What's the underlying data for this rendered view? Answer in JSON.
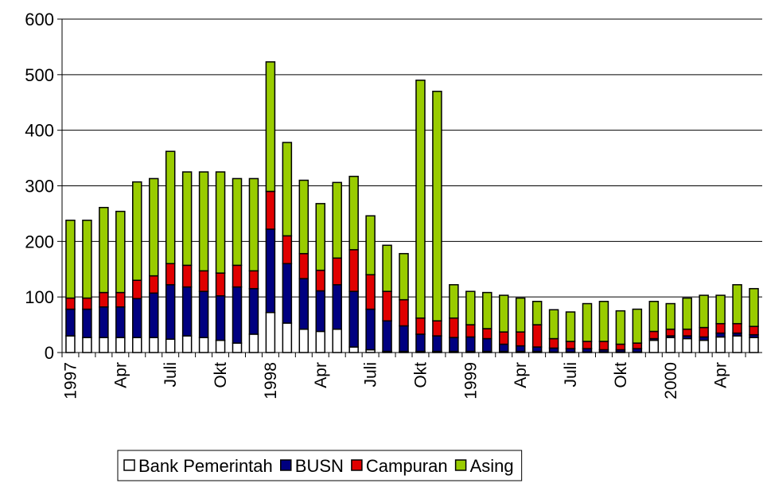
{
  "chart_data": {
    "type": "stacked-bar",
    "categories": [
      "1997",
      null,
      null,
      "Apr",
      null,
      null,
      "Juli",
      null,
      null,
      "Okt",
      null,
      null,
      "1998",
      null,
      null,
      "Apr",
      null,
      null,
      "Juli",
      null,
      null,
      "Okt",
      null,
      null,
      "1999",
      null,
      null,
      "Apr",
      null,
      null,
      "Juli",
      null,
      null,
      "Okt",
      null,
      null,
      "2000",
      null,
      null,
      "Apr",
      null,
      null
    ],
    "series": [
      {
        "name": "Bank Pemerintah",
        "color": "#ffffff",
        "values": [
          30,
          27,
          27,
          27,
          27,
          27,
          24,
          30,
          27,
          22,
          17,
          33,
          72,
          53,
          42,
          38,
          42,
          10,
          5,
          2,
          2,
          2,
          2,
          2,
          2,
          2,
          2,
          2,
          2,
          1,
          1,
          1,
          1,
          1,
          1,
          22,
          27,
          25,
          22,
          28,
          30,
          27
        ]
      },
      {
        "name": "BUSN",
        "color": "#000080",
        "values": [
          48,
          51,
          55,
          55,
          70,
          80,
          98,
          88,
          83,
          80,
          101,
          82,
          150,
          107,
          91,
          73,
          80,
          100,
          73,
          55,
          46,
          31,
          28,
          25,
          26,
          23,
          13,
          10,
          8,
          7,
          6,
          6,
          4,
          4,
          6,
          3,
          3,
          5,
          6,
          7,
          5,
          5
        ]
      },
      {
        "name": "Campuran",
        "color": "#e00000",
        "values": [
          20,
          20,
          26,
          26,
          33,
          31,
          38,
          39,
          37,
          41,
          39,
          32,
          68,
          50,
          45,
          37,
          48,
          75,
          62,
          53,
          47,
          29,
          27,
          35,
          22,
          18,
          22,
          25,
          40,
          17,
          13,
          13,
          15,
          10,
          10,
          13,
          12,
          12,
          17,
          17,
          17,
          15
        ]
      },
      {
        "name": "Asing",
        "color": "#99cc00",
        "values": [
          140,
          140,
          153,
          146,
          177,
          175,
          202,
          168,
          178,
          182,
          156,
          166,
          233,
          168,
          132,
          120,
          136,
          132,
          106,
          83,
          83,
          428,
          413,
          60,
          60,
          65,
          66,
          61,
          42,
          52,
          53,
          68,
          72,
          60,
          61,
          54,
          46,
          56,
          58,
          51,
          70,
          68
        ]
      }
    ],
    "ylim": [
      0,
      600
    ],
    "yticks": [
      0,
      100,
      200,
      300,
      400,
      500,
      600
    ],
    "grid": true,
    "legend": "bottom"
  }
}
